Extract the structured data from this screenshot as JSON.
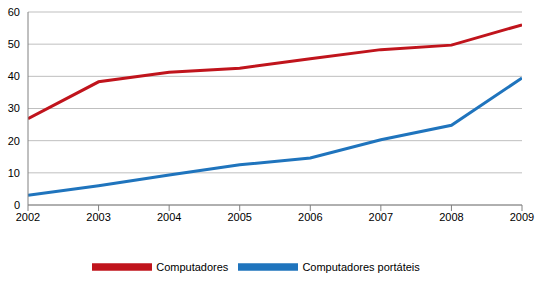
{
  "chart_data": {
    "type": "line",
    "x": [
      2002,
      2003,
      2004,
      2005,
      2006,
      2007,
      2008,
      2009
    ],
    "series": [
      {
        "name": "Computadores portáteis",
        "color": "#1f74bd",
        "values": [
          3,
          6,
          9.3,
          12.5,
          14.6,
          20.3,
          24.8,
          39.5
        ]
      },
      {
        "name": "Computadores",
        "color": "#c0141c",
        "values": [
          26.8,
          38.3,
          41.3,
          42.5,
          45.5,
          48.3,
          49.7,
          56
        ]
      }
    ],
    "xlim": [
      2002,
      2009
    ],
    "xticks": [
      2002,
      2003,
      2004,
      2005,
      2006,
      2007,
      2008,
      2009
    ],
    "ylim": [
      0,
      60
    ],
    "yticks": [
      0,
      10,
      20,
      30,
      40,
      50,
      60
    ],
    "grid": true,
    "legend": "bottom"
  }
}
